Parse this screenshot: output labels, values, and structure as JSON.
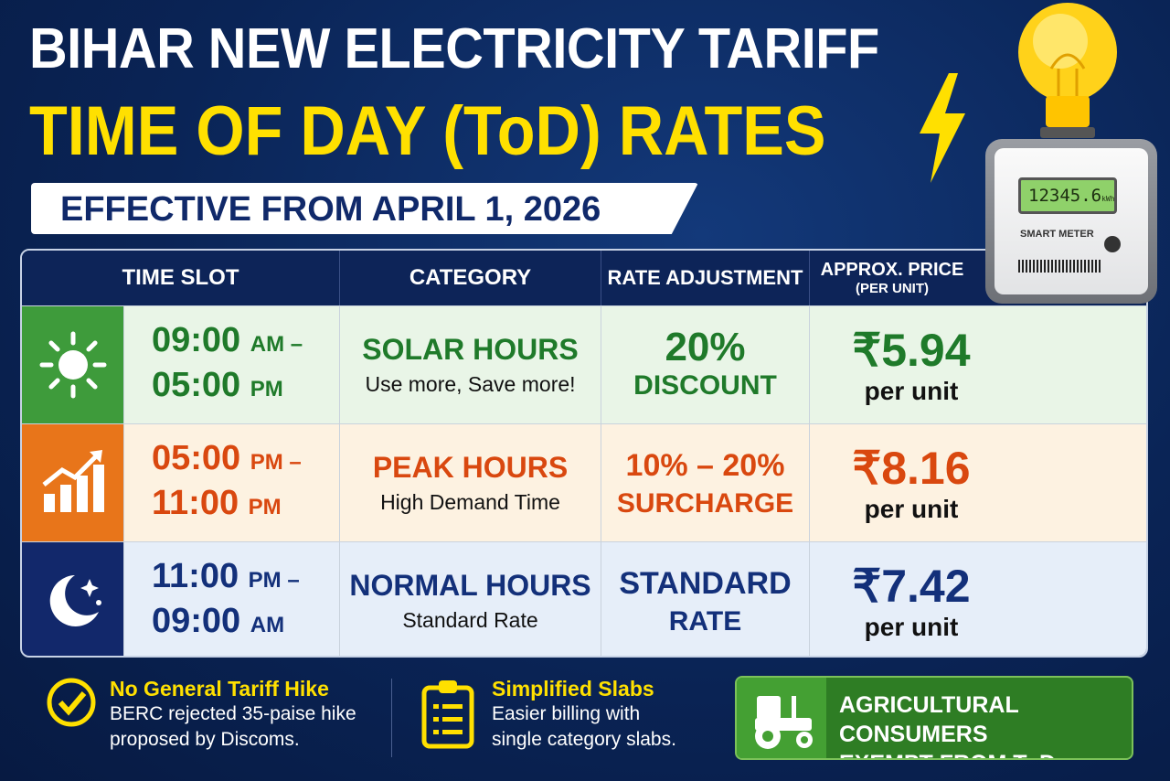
{
  "title_line1": "BIHAR NEW ELECTRICITY TARIFF",
  "title_line2": "TIME OF DAY (ToD) RATES",
  "effective": "EFFECTIVE FROM APRIL 1, 2026",
  "meter": {
    "reading": "12345.6",
    "unit": "kWh",
    "label": "SMART METER"
  },
  "table": {
    "headers": [
      "TIME SLOT",
      "CATEGORY",
      "RATE ADJUSTMENT",
      "APPROX. PRICE"
    ],
    "price_sub": "(PER UNIT)",
    "rows": [
      {
        "icon": "sun-icon",
        "t1": "09:00",
        "m1": "AM –",
        "t2": "05:00",
        "m2": "PM",
        "cat": "SOLAR HOURS",
        "sub": "Use more, Save more!",
        "adj1": "20%",
        "adj2": "DISCOUNT",
        "price": "₹5.94",
        "per": "per unit",
        "color": "#1f7a2a",
        "bg": "#e9f5e7",
        "iconbg": "#3e9b3b"
      },
      {
        "icon": "rising-chart-icon",
        "t1": "05:00",
        "m1": "PM –",
        "t2": "11:00",
        "m2": "PM",
        "cat": "PEAK HOURS",
        "sub": "High Demand Time",
        "adj1": "10% – 20%",
        "adj2": "SURCHARGE",
        "price": "₹8.16",
        "per": "per unit",
        "color": "#d9480f",
        "bg": "#fdf2e1",
        "iconbg": "#e8751a"
      },
      {
        "icon": "moon-stars-icon",
        "t1": "11:00",
        "m1": "PM –",
        "t2": "09:00",
        "m2": "AM",
        "cat": "NORMAL HOURS",
        "sub": "Standard Rate",
        "adj1": "STANDARD",
        "adj2": "RATE",
        "price": "₹7.42",
        "per": "per unit",
        "color": "#13307a",
        "bg": "#e6eef9",
        "iconbg": "#12286b"
      }
    ]
  },
  "footer": {
    "item1": {
      "title": "No General Tariff Hike",
      "line1": "BERC rejected 35-paise hike",
      "line2": "proposed by Discoms."
    },
    "item2": {
      "title": "Simplified Slabs",
      "line1": "Easier billing with",
      "line2": "single category slabs."
    },
    "agri": {
      "line1": "AGRICULTURAL CONSUMERS",
      "line2": "EXEMPT FROM ToD TARIFF"
    }
  },
  "colors": {
    "navy": "#0a2456",
    "yellow": "#ffe000",
    "green": "#3e9b3b",
    "orange": "#e8751a"
  }
}
